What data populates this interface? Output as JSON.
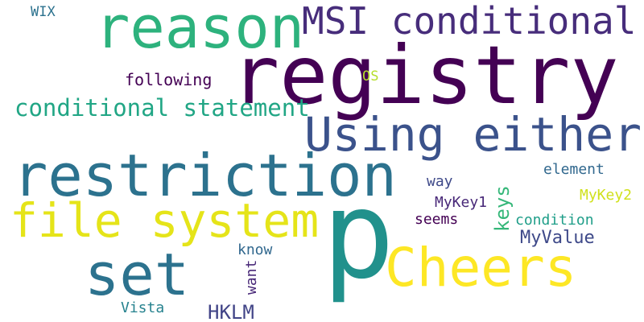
{
  "words": {
    "registry": {
      "text": "registry",
      "color": "#440154"
    },
    "p": {
      "text": "p",
      "color": "#21918c"
    },
    "reason": {
      "text": "reason",
      "color": "#2db27d"
    },
    "msi_conditional": {
      "text": "MSI conditional",
      "color": "#472d7b"
    },
    "using_either": {
      "text": "Using either",
      "color": "#3b528b"
    },
    "restriction": {
      "text": "restriction",
      "color": "#2c728e"
    },
    "file_system": {
      "text": "file system",
      "color": "#e5e419"
    },
    "set": {
      "text": "set",
      "color": "#2c728e"
    },
    "cheers": {
      "text": "Cheers",
      "color": "#fde725"
    },
    "conditional_statement": {
      "text": "conditional statement",
      "color": "#21a685"
    },
    "following": {
      "text": "following",
      "color": "#440154"
    },
    "os": {
      "text": "OS",
      "color": "#b5de2b"
    },
    "wix": {
      "text": "WIX",
      "color": "#2c728e"
    },
    "element": {
      "text": "element",
      "color": "#31688e"
    },
    "mykey2": {
      "text": "MyKey2",
      "color": "#d0e11c"
    },
    "way": {
      "text": "way",
      "color": "#3e4989"
    },
    "mykey1": {
      "text": "MyKey1",
      "color": "#482878"
    },
    "keys": {
      "text": "keys",
      "color": "#35b779"
    },
    "condition": {
      "text": "condition",
      "color": "#1f9e89"
    },
    "seems": {
      "text": "seems",
      "color": "#440154"
    },
    "myvalue": {
      "text": "MyValue",
      "color": "#3e4989"
    },
    "know": {
      "text": "know",
      "color": "#31688e"
    },
    "want": {
      "text": "want",
      "color": "#482878"
    },
    "vista": {
      "text": "Vista",
      "color": "#26828e"
    },
    "hklm": {
      "text": "HKLM",
      "color": "#414487"
    }
  }
}
